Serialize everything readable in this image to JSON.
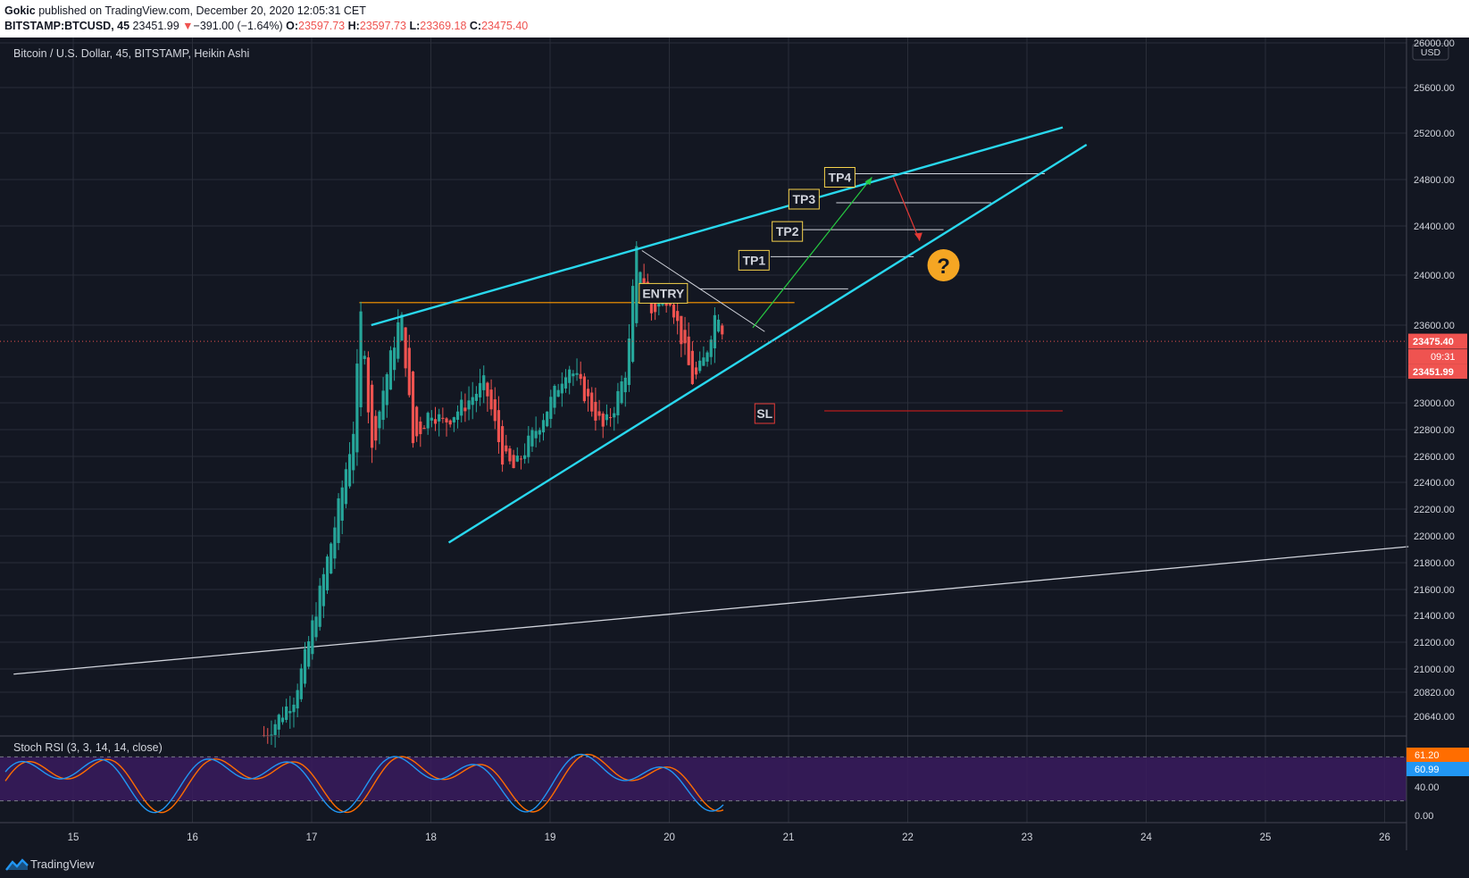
{
  "header": {
    "author": "Gokic",
    "published_text": "published on TradingView.com, December 20, 2020 12:05:31 CET",
    "symbol_text": "BITSTAMP:BTCUSD, 45",
    "last_price": "23451.99",
    "change_arrow": "▼",
    "change": "−391.00 (−1.64%)",
    "o_label": "O:",
    "o_value": "23597.73",
    "h_label": "H:",
    "h_value": "23597.73",
    "l_label": "L:",
    "l_value": "23369.18",
    "c_label": "C:",
    "c_value": "23475.40"
  },
  "legend": {
    "main": "Bitcoin / U.S. Dollar, 45, BITSTAMP, Heikin Ashi",
    "oscillator": "Stoch RSI (3, 3, 14, 14, close)"
  },
  "price_axis": {
    "currency": "USD",
    "ticks": [
      20640,
      20820,
      21000,
      21200,
      21400,
      21600,
      21800,
      22000,
      22200,
      22400,
      22600,
      22800,
      23000,
      23200,
      23600,
      24000,
      24400,
      24800,
      25200,
      25600,
      26000
    ],
    "tick_labels": [
      "20640.00",
      "20820.00",
      "21000.00",
      "21200.00",
      "21400.00",
      "21600.00",
      "21800.00",
      "22000.00",
      "22200.00",
      "22400.00",
      "22600.00",
      "22800.00",
      "23000.00",
      "23200.00",
      "23600.00",
      "24000.00",
      "24400.00",
      "24800.00",
      "25200.00",
      "25600.00",
      "26000.00"
    ],
    "current_badge": "23475.40",
    "countdown_badge": "09:31",
    "last_badge": "23451.99"
  },
  "osc_axis": {
    "tick_labels": [
      "40.00",
      "0.00"
    ],
    "k_badge": "61.20",
    "d_badge": "60.99"
  },
  "time_axis": {
    "labels": [
      "15",
      "16",
      "17",
      "18",
      "19",
      "20",
      "21",
      "22",
      "23",
      "24",
      "25",
      "26"
    ]
  },
  "annotations": {
    "entry": "ENTRY",
    "tp1": "TP1",
    "tp2": "TP2",
    "tp3": "TP3",
    "tp4": "TP4",
    "sl": "SL",
    "question": "?"
  },
  "colors": {
    "background": "#131722",
    "grid": "#2a2e39",
    "up": "#26a69a",
    "down": "#ef5350",
    "channel": "#29d8ee",
    "resistance": "#ff9800",
    "target_arrow": "#26c941",
    "drop_arrow": "#e53935",
    "tp_border": "#f6d24b",
    "stoch_k": "#2196f3",
    "stoch_d": "#ff6d00",
    "osc_band": "#3a1b5e"
  },
  "chart_data": {
    "type": "candlestick",
    "style": "Heikin Ashi",
    "symbol": "BITSTAMP:BTCUSD",
    "interval": "45",
    "x_axis_days": [
      "15",
      "16",
      "17",
      "18",
      "19",
      "20",
      "21",
      "22",
      "23",
      "24",
      "25",
      "26"
    ],
    "ohlc_path": [
      [
        16.6,
        20500
      ],
      [
        16.7,
        20600
      ],
      [
        16.85,
        20780
      ],
      [
        16.95,
        21100
      ],
      [
        17.05,
        21500
      ],
      [
        17.2,
        22100
      ],
      [
        17.35,
        22800
      ],
      [
        17.42,
        23780
      ],
      [
        17.5,
        22600
      ],
      [
        17.6,
        23100
      ],
      [
        17.75,
        23700
      ],
      [
        17.85,
        22700
      ],
      [
        18.0,
        22950
      ],
      [
        18.1,
        22850
      ],
      [
        18.3,
        23000
      ],
      [
        18.45,
        23150
      ],
      [
        18.6,
        22600
      ],
      [
        18.7,
        22500
      ],
      [
        18.85,
        22750
      ],
      [
        19.0,
        23000
      ],
      [
        19.15,
        23300
      ],
      [
        19.3,
        23050
      ],
      [
        19.45,
        22800
      ],
      [
        19.55,
        23000
      ],
      [
        19.65,
        23300
      ],
      [
        19.72,
        24200
      ],
      [
        19.85,
        23700
      ],
      [
        20.0,
        23850
      ],
      [
        20.1,
        23500
      ],
      [
        20.2,
        23150
      ],
      [
        20.3,
        23350
      ],
      [
        20.4,
        23750
      ],
      [
        20.47,
        23475
      ]
    ],
    "last_close": 23475.4,
    "levels": {
      "resistance": 23780,
      "entry": 23890,
      "tp1": 24150,
      "tp2": 24370,
      "tp3": 24600,
      "tp4": 24850,
      "stop_loss": 22940
    },
    "channel_upper": [
      [
        17.5,
        23600
      ],
      [
        23.3,
        25250
      ]
    ],
    "channel_lower": [
      [
        18.15,
        21950
      ],
      [
        23.5,
        25100
      ]
    ],
    "long_trendline": [
      [
        14.5,
        20960
      ],
      [
        26.2,
        21920
      ]
    ],
    "stoch_rsi": {
      "params": "3, 3, 14, 14, close",
      "k_last": 61.2,
      "d_last": 60.99,
      "upper_band": 80,
      "lower_band": 20
    }
  }
}
